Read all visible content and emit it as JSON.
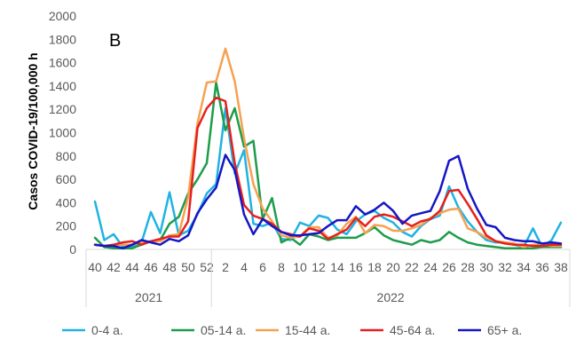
{
  "chart_data": {
    "type": "line",
    "panel_label": "B",
    "ylabel": "Casos COVID-19/100,000 h",
    "ylim": [
      0,
      2000
    ],
    "y_ticks": [
      0,
      200,
      400,
      600,
      800,
      1000,
      1200,
      1400,
      1600,
      1800,
      2000
    ],
    "grid": false,
    "legend_position": "bottom",
    "x_tick_labels": [
      "40",
      "42",
      "44",
      "46",
      "48",
      "50",
      "52",
      "2",
      "4",
      "6",
      "8",
      "10",
      "12",
      "14",
      "16",
      "18",
      "20",
      "22",
      "24",
      "26",
      "28",
      "30",
      "32",
      "34",
      "36",
      "38"
    ],
    "year_groups": [
      {
        "label": "2021",
        "first_index": 0,
        "last_index": 12
      },
      {
        "label": "2022",
        "first_index": 13,
        "last_index": 50
      }
    ],
    "x_weeks": [
      40,
      41,
      42,
      43,
      44,
      45,
      46,
      47,
      48,
      49,
      50,
      51,
      52,
      1,
      2,
      3,
      4,
      5,
      6,
      7,
      8,
      9,
      10,
      11,
      12,
      13,
      14,
      15,
      16,
      17,
      18,
      19,
      20,
      21,
      22,
      23,
      24,
      25,
      26,
      27,
      28,
      29,
      30,
      31,
      32,
      33,
      34,
      35,
      36,
      37,
      38
    ],
    "series": [
      {
        "name": "0-4 a.",
        "color": "#1fb3e3",
        "values": [
          410,
          80,
          130,
          20,
          20,
          60,
          320,
          140,
          490,
          120,
          160,
          300,
          480,
          560,
          1210,
          650,
          850,
          220,
          200,
          230,
          90,
          80,
          230,
          200,
          290,
          270,
          170,
          130,
          240,
          300,
          330,
          270,
          230,
          150,
          110,
          200,
          260,
          290,
          540,
          360,
          240,
          150,
          80,
          60,
          60,
          40,
          20,
          180,
          20,
          80,
          230
        ]
      },
      {
        "name": "05-14 a.",
        "color": "#1e9c4c",
        "values": [
          100,
          20,
          10,
          10,
          10,
          40,
          70,
          80,
          220,
          280,
          480,
          600,
          740,
          1430,
          1020,
          1210,
          880,
          930,
          260,
          440,
          60,
          100,
          40,
          130,
          110,
          80,
          100,
          100,
          100,
          140,
          190,
          120,
          80,
          60,
          40,
          80,
          60,
          80,
          150,
          100,
          60,
          40,
          30,
          20,
          10,
          10,
          10,
          10,
          20,
          20,
          20
        ]
      },
      {
        "name": "15-44 a.",
        "color": "#f6a151",
        "values": [
          40,
          30,
          40,
          40,
          40,
          60,
          70,
          70,
          120,
          130,
          450,
          1080,
          1430,
          1440,
          1720,
          1440,
          950,
          560,
          350,
          240,
          120,
          100,
          110,
          190,
          190,
          100,
          120,
          220,
          280,
          140,
          210,
          200,
          160,
          160,
          180,
          210,
          270,
          310,
          340,
          350,
          180,
          150,
          100,
          70,
          60,
          50,
          20,
          40,
          40,
          30,
          30
        ]
      },
      {
        "name": "45-64 a.",
        "color": "#e5211f",
        "values": [
          40,
          30,
          40,
          60,
          70,
          40,
          70,
          90,
          110,
          110,
          240,
          1040,
          1210,
          1300,
          1270,
          740,
          380,
          290,
          260,
          220,
          150,
          130,
          110,
          180,
          160,
          90,
          130,
          170,
          270,
          200,
          280,
          300,
          280,
          240,
          200,
          240,
          260,
          330,
          500,
          510,
          390,
          260,
          120,
          70,
          50,
          40,
          40,
          30,
          30,
          40,
          40
        ]
      },
      {
        "name": "65+ a.",
        "color": "#1616c4",
        "values": [
          40,
          30,
          30,
          10,
          40,
          80,
          60,
          40,
          90,
          70,
          120,
          310,
          430,
          530,
          810,
          680,
          300,
          130,
          260,
          200,
          150,
          120,
          120,
          130,
          140,
          200,
          250,
          250,
          370,
          300,
          340,
          400,
          330,
          220,
          290,
          310,
          330,
          500,
          760,
          800,
          520,
          350,
          210,
          190,
          100,
          80,
          70,
          70,
          50,
          60,
          50
        ]
      }
    ]
  }
}
